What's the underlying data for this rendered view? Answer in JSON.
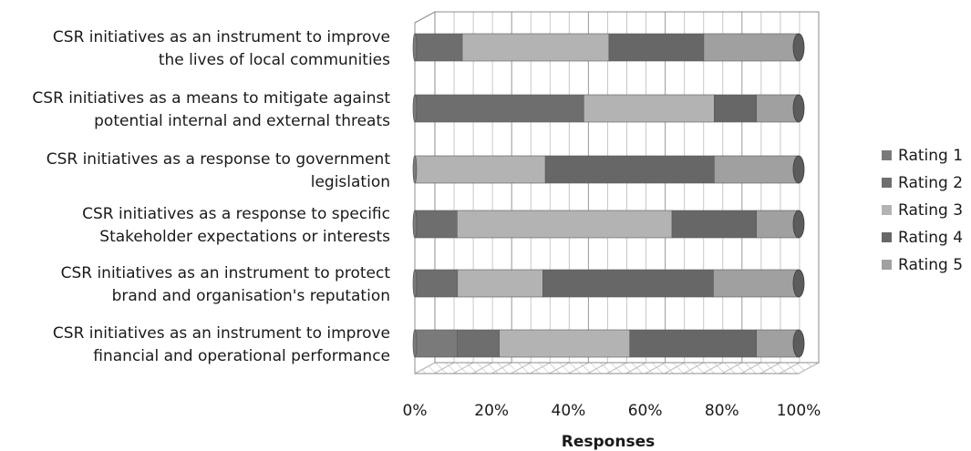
{
  "chart_data": {
    "type": "bar",
    "orientation": "horizontal",
    "stacked": "percent",
    "three_d": true,
    "categories": [
      [
        "CSR initiatives as an instrument to improve",
        "the lives of local communities"
      ],
      [
        "CSR initiatives as a means to mitigate against",
        "potential internal and external threats"
      ],
      [
        "CSR initiatives as a response to government",
        "legislation"
      ],
      [
        "CSR initiatives as a response to specific",
        "Stakeholder expectations or interests"
      ],
      [
        "CSR initiatives as an instrument to protect",
        "brand and  organisation's reputation"
      ],
      [
        "CSR initiatives as an instrument to improve",
        "financial and operational performance"
      ]
    ],
    "series": [
      {
        "name": "Rating 1",
        "color": "#7a7a7a",
        "values": [
          0,
          0,
          0,
          0,
          0,
          11
        ]
      },
      {
        "name": "Rating 2",
        "color": "#6e6e6e",
        "values": [
          11,
          44,
          0,
          11,
          11,
          11
        ]
      },
      {
        "name": "Rating 3",
        "color": "#b3b3b3",
        "values": [
          34,
          34,
          34,
          56,
          22,
          34
        ]
      },
      {
        "name": "Rating 4",
        "color": "#676767",
        "values": [
          22,
          11,
          44,
          22,
          44,
          33
        ]
      },
      {
        "name": "Rating 5",
        "color": "#a0a0a0",
        "values": [
          22,
          11,
          22,
          11,
          22,
          11
        ]
      }
    ],
    "xlim": [
      0,
      100
    ],
    "xticks": [
      "0%",
      "20%",
      "40%",
      "60%",
      "80%",
      "100%"
    ],
    "xlabel": "Responses",
    "grid": true,
    "legend": "right"
  }
}
